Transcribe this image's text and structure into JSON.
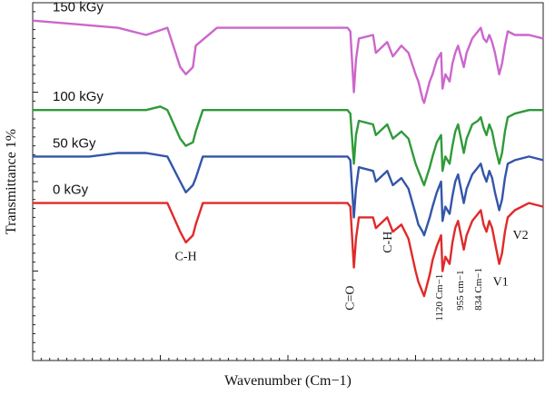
{
  "chart_data": {
    "type": "line",
    "title": "",
    "xlabel": "Wavenumber (Cm−1)",
    "ylabel": "Transmittance 1%",
    "xlim": [
      4000,
      400
    ],
    "ylim": [
      0,
      100
    ],
    "grid": false,
    "legend": "none",
    "series": [
      {
        "name": "150 kGy",
        "color": "#cc66cc",
        "points": [
          [
            4000,
            95
          ],
          [
            3700,
            94
          ],
          [
            3400,
            93
          ],
          [
            3200,
            91
          ],
          [
            3050,
            93
          ],
          [
            2960,
            82
          ],
          [
            2920,
            80
          ],
          [
            2870,
            82
          ],
          [
            2850,
            88
          ],
          [
            2700,
            93
          ],
          [
            2300,
            93
          ],
          [
            1780,
            93
          ],
          [
            1760,
            92
          ],
          [
            1735,
            75
          ],
          [
            1720,
            84
          ],
          [
            1700,
            90
          ],
          [
            1600,
            91
          ],
          [
            1580,
            86
          ],
          [
            1500,
            89
          ],
          [
            1460,
            85
          ],
          [
            1400,
            88
          ],
          [
            1350,
            86
          ],
          [
            1300,
            80
          ],
          [
            1280,
            78
          ],
          [
            1250,
            73
          ],
          [
            1240,
            72
          ],
          [
            1200,
            78
          ],
          [
            1180,
            80
          ],
          [
            1150,
            84
          ],
          [
            1120,
            86
          ],
          [
            1110,
            76
          ],
          [
            1090,
            80
          ],
          [
            1060,
            78
          ],
          [
            1040,
            83
          ],
          [
            1020,
            86
          ],
          [
            1000,
            88
          ],
          [
            960,
            82
          ],
          [
            940,
            86
          ],
          [
            900,
            90
          ],
          [
            860,
            92
          ],
          [
            840,
            93
          ],
          [
            820,
            90
          ],
          [
            800,
            89
          ],
          [
            780,
            91
          ],
          [
            760,
            89
          ],
          [
            740,
            86
          ],
          [
            710,
            80
          ],
          [
            690,
            83
          ],
          [
            670,
            88
          ],
          [
            650,
            92
          ],
          [
            600,
            91
          ],
          [
            500,
            91
          ],
          [
            400,
            90
          ]
        ]
      },
      {
        "name": "100 kGy",
        "color": "#2f9a3a",
        "points": [
          [
            4000,
            70
          ],
          [
            3600,
            70
          ],
          [
            3200,
            70
          ],
          [
            3100,
            71
          ],
          [
            3050,
            70
          ],
          [
            2960,
            62
          ],
          [
            2920,
            60
          ],
          [
            2870,
            61
          ],
          [
            2850,
            64
          ],
          [
            2800,
            70
          ],
          [
            2300,
            70
          ],
          [
            1780,
            70
          ],
          [
            1760,
            69
          ],
          [
            1735,
            55
          ],
          [
            1720,
            63
          ],
          [
            1700,
            67
          ],
          [
            1600,
            66
          ],
          [
            1580,
            63
          ],
          [
            1500,
            66
          ],
          [
            1460,
            62
          ],
          [
            1400,
            64
          ],
          [
            1350,
            62
          ],
          [
            1300,
            55
          ],
          [
            1280,
            53
          ],
          [
            1250,
            50
          ],
          [
            1240,
            49
          ],
          [
            1200,
            54
          ],
          [
            1180,
            57
          ],
          [
            1150,
            61
          ],
          [
            1120,
            63
          ],
          [
            1110,
            53
          ],
          [
            1090,
            57
          ],
          [
            1060,
            55
          ],
          [
            1040,
            60
          ],
          [
            1020,
            64
          ],
          [
            1000,
            66
          ],
          [
            960,
            58
          ],
          [
            940,
            62
          ],
          [
            900,
            66
          ],
          [
            860,
            67
          ],
          [
            840,
            68
          ],
          [
            820,
            65
          ],
          [
            800,
            63
          ],
          [
            780,
            66
          ],
          [
            760,
            64
          ],
          [
            740,
            60
          ],
          [
            710,
            55
          ],
          [
            690,
            58
          ],
          [
            670,
            64
          ],
          [
            650,
            68
          ],
          [
            600,
            69
          ],
          [
            500,
            70
          ],
          [
            400,
            70
          ]
        ]
      },
      {
        "name": "50 kGy",
        "color": "#3355aa",
        "points": [
          [
            4000,
            57
          ],
          [
            3600,
            57
          ],
          [
            3400,
            58
          ],
          [
            3200,
            58
          ],
          [
            3050,
            57
          ],
          [
            2960,
            50
          ],
          [
            2920,
            47
          ],
          [
            2870,
            49
          ],
          [
            2850,
            51
          ],
          [
            2800,
            57
          ],
          [
            2300,
            57
          ],
          [
            1780,
            57
          ],
          [
            1760,
            56
          ],
          [
            1735,
            40
          ],
          [
            1720,
            48
          ],
          [
            1700,
            54
          ],
          [
            1600,
            53
          ],
          [
            1580,
            50
          ],
          [
            1500,
            53
          ],
          [
            1460,
            49
          ],
          [
            1400,
            51
          ],
          [
            1350,
            48
          ],
          [
            1300,
            41
          ],
          [
            1280,
            38
          ],
          [
            1250,
            36
          ],
          [
            1240,
            35
          ],
          [
            1200,
            40
          ],
          [
            1180,
            43
          ],
          [
            1150,
            47
          ],
          [
            1120,
            50
          ],
          [
            1110,
            39
          ],
          [
            1090,
            43
          ],
          [
            1060,
            41
          ],
          [
            1040,
            46
          ],
          [
            1020,
            50
          ],
          [
            1000,
            52
          ],
          [
            960,
            44
          ],
          [
            940,
            48
          ],
          [
            900,
            52
          ],
          [
            860,
            54
          ],
          [
            840,
            55
          ],
          [
            820,
            52
          ],
          [
            800,
            50
          ],
          [
            780,
            53
          ],
          [
            760,
            51
          ],
          [
            740,
            47
          ],
          [
            710,
            42
          ],
          [
            690,
            45
          ],
          [
            670,
            51
          ],
          [
            650,
            55
          ],
          [
            600,
            56
          ],
          [
            500,
            57
          ],
          [
            400,
            56
          ]
        ]
      },
      {
        "name": "0 kGy",
        "color": "#e02a2a",
        "points": [
          [
            4000,
            44
          ],
          [
            3600,
            44
          ],
          [
            3400,
            44
          ],
          [
            3200,
            44
          ],
          [
            3050,
            44
          ],
          [
            2960,
            36
          ],
          [
            2920,
            33
          ],
          [
            2870,
            35
          ],
          [
            2850,
            38
          ],
          [
            2800,
            44
          ],
          [
            2300,
            44
          ],
          [
            1780,
            44
          ],
          [
            1760,
            43
          ],
          [
            1735,
            26
          ],
          [
            1720,
            34
          ],
          [
            1700,
            40
          ],
          [
            1600,
            40
          ],
          [
            1580,
            37
          ],
          [
            1500,
            40
          ],
          [
            1460,
            36
          ],
          [
            1400,
            38
          ],
          [
            1350,
            34
          ],
          [
            1300,
            25
          ],
          [
            1280,
            22
          ],
          [
            1250,
            19
          ],
          [
            1240,
            18
          ],
          [
            1200,
            24
          ],
          [
            1180,
            28
          ],
          [
            1150,
            32
          ],
          [
            1120,
            35
          ],
          [
            1110,
            25
          ],
          [
            1090,
            29
          ],
          [
            1060,
            27
          ],
          [
            1040,
            33
          ],
          [
            1020,
            37
          ],
          [
            1000,
            39
          ],
          [
            960,
            31
          ],
          [
            940,
            35
          ],
          [
            900,
            39
          ],
          [
            860,
            41
          ],
          [
            840,
            42
          ],
          [
            820,
            38
          ],
          [
            800,
            36
          ],
          [
            780,
            39
          ],
          [
            760,
            37
          ],
          [
            740,
            33
          ],
          [
            710,
            27
          ],
          [
            690,
            30
          ],
          [
            670,
            36
          ],
          [
            650,
            40
          ],
          [
            600,
            42
          ],
          [
            500,
            44
          ],
          [
            400,
            43
          ]
        ]
      }
    ],
    "annotations": [
      {
        "text": "C-H",
        "x": 2920,
        "y": 28,
        "rotate": 0,
        "size": "annot"
      },
      {
        "text": "C=O",
        "x": 1735,
        "y": 14,
        "rotate": -90,
        "size": "annot"
      },
      {
        "text": "C-H",
        "x": 1470,
        "y": 30,
        "rotate": -90,
        "size": "annot"
      },
      {
        "text": "1120 Cm−1",
        "x": 1110,
        "y": 11,
        "rotate": -90,
        "size": "annot-small"
      },
      {
        "text": "955 cm−1",
        "x": 965,
        "y": 14,
        "rotate": -90,
        "size": "annot-small"
      },
      {
        "text": "834 Cm−1",
        "x": 835,
        "y": 14,
        "rotate": -90,
        "size": "annot-small"
      },
      {
        "text": "V1",
        "x": 700,
        "y": 21,
        "rotate": 0,
        "size": "annot"
      },
      {
        "text": "V2",
        "x": 560,
        "y": 34,
        "rotate": 0,
        "size": "annot"
      }
    ]
  }
}
